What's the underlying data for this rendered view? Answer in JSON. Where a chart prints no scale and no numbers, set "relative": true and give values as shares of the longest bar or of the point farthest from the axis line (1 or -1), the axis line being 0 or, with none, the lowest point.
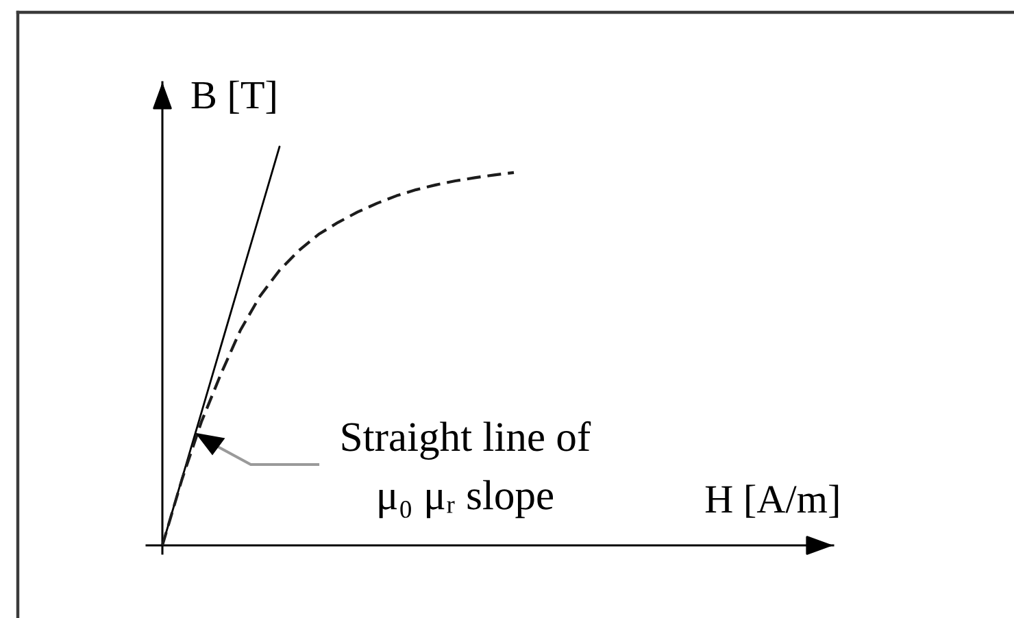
{
  "chart_data": {
    "type": "line",
    "relative": true,
    "xlabel": "H [A/m]",
    "ylabel": "B [T]",
    "categories": [
      null,
      null,
      null,
      null,
      null,
      null,
      null,
      null,
      null,
      null,
      null,
      null,
      null,
      null,
      null,
      null,
      null,
      null,
      null,
      null,
      null,
      null,
      null,
      null,
      null,
      null,
      null,
      null,
      null,
      null,
      null,
      null,
      null,
      null,
      null
    ],
    "series": [
      {
        "color": "#000000",
        "line_style": "solid",
        "values": [
          0,
          0.167,
          0.333,
          0.5,
          0.667,
          0.833,
          1,
          null,
          null,
          null,
          null,
          null,
          null,
          null,
          null,
          null,
          null,
          null,
          null,
          null,
          null,
          null,
          null,
          null,
          null,
          null,
          null,
          null,
          null,
          null,
          null,
          null,
          null,
          null,
          null
        ]
      },
      {
        "color": "#1c1c1c",
        "line_style": "dashed",
        "values": [
          0,
          0.165,
          0.31,
          0.43,
          0.54,
          0.625,
          0.69,
          0.74,
          0.78,
          0.81,
          0.836,
          0.858,
          0.877,
          0.892,
          0.904,
          0.914,
          0.922,
          0.929,
          0.935,
          null,
          null,
          null,
          null,
          null,
          null,
          null,
          null,
          null,
          null,
          null,
          null,
          null,
          null,
          null,
          null
        ]
      }
    ],
    "annotations": [
      "Straight line of\nμ₀ μᵣ slope"
    ]
  }
}
